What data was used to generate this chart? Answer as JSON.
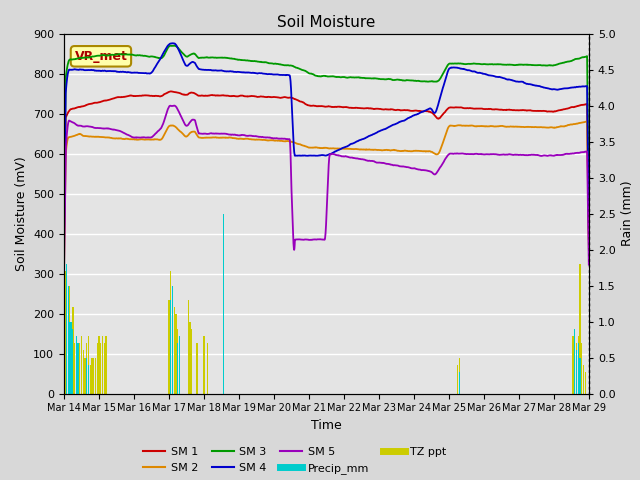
{
  "title": "Soil Moisture",
  "xlabel": "Time",
  "ylabel_left": "Soil Moisture (mV)",
  "ylabel_right": "Rain (mm)",
  "ylim_left": [
    0,
    900
  ],
  "ylim_right": [
    0,
    5.0
  ],
  "yticks_left": [
    0,
    100,
    200,
    300,
    400,
    500,
    600,
    700,
    800,
    900
  ],
  "yticks_right": [
    0.0,
    0.5,
    1.0,
    1.5,
    2.0,
    2.5,
    3.0,
    3.5,
    4.0,
    4.5,
    5.0
  ],
  "xtick_labels": [
    "Mar 14",
    "Mar 15",
    "Mar 16",
    "Mar 17",
    "Mar 18",
    "Mar 19",
    "Mar 20",
    "Mar 21",
    "Mar 22",
    "Mar 23",
    "Mar 24",
    "Mar 25",
    "Mar 26",
    "Mar 27",
    "Mar 28",
    "Mar 29"
  ],
  "vr_met_label": "VR_met",
  "background_color": "#d8d8d8",
  "plot_bg_color": "#e4e4e4",
  "grid_color": "white",
  "colors": {
    "SM1": "#cc0000",
    "SM2": "#dd8800",
    "SM3": "#009900",
    "SM4": "#0000cc",
    "SM5": "#9900bb",
    "Precip_mm": "#00cccc",
    "TZ_ppt": "#cccc00"
  }
}
